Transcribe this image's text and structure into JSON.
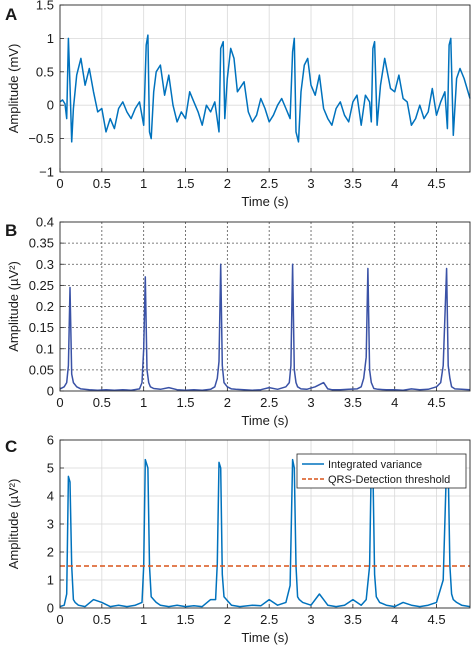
{
  "chart_data": [
    {
      "panel": "A",
      "type": "line",
      "xlabel": "Time (s)",
      "ylabel": "Amplitude (mV)",
      "xlim": [
        0,
        4.9
      ],
      "ylim": [
        -1,
        1.5
      ],
      "xticks": [
        "0",
        "0.5",
        "1",
        "1.5",
        "2",
        "2.5",
        "3",
        "3.5",
        "4",
        "4.5"
      ],
      "yticks": [
        "−1",
        "−0.5",
        "0",
        "0.5",
        "1",
        "1.5"
      ],
      "grid": "on",
      "color": "#0072BD",
      "x": [
        0.0,
        0.03,
        0.06,
        0.08,
        0.1,
        0.12,
        0.14,
        0.16,
        0.2,
        0.25,
        0.3,
        0.35,
        0.4,
        0.45,
        0.5,
        0.55,
        0.6,
        0.65,
        0.7,
        0.75,
        0.8,
        0.85,
        0.9,
        0.95,
        1.0,
        1.03,
        1.05,
        1.07,
        1.09,
        1.12,
        1.15,
        1.2,
        1.25,
        1.3,
        1.35,
        1.4,
        1.45,
        1.5,
        1.55,
        1.6,
        1.65,
        1.7,
        1.75,
        1.8,
        1.85,
        1.9,
        1.92,
        1.95,
        1.97,
        2.0,
        2.04,
        2.08,
        2.12,
        2.2,
        2.25,
        2.3,
        2.35,
        2.4,
        2.45,
        2.5,
        2.55,
        2.6,
        2.65,
        2.7,
        2.75,
        2.78,
        2.8,
        2.82,
        2.85,
        2.88,
        2.92,
        2.96,
        3.0,
        3.05,
        3.1,
        3.15,
        3.2,
        3.25,
        3.3,
        3.35,
        3.4,
        3.45,
        3.5,
        3.55,
        3.6,
        3.65,
        3.7,
        3.72,
        3.74,
        3.76,
        3.79,
        3.83,
        3.88,
        3.95,
        4.0,
        4.05,
        4.1,
        4.15,
        4.2,
        4.25,
        4.3,
        4.35,
        4.4,
        4.45,
        4.5,
        4.55,
        4.6,
        4.63,
        4.65,
        4.67,
        4.7,
        4.74,
        4.78,
        4.83,
        4.9
      ],
      "y": [
        0.05,
        0.08,
        0.02,
        -0.2,
        1.0,
        0.3,
        -0.55,
        -0.05,
        0.45,
        0.7,
        0.3,
        0.55,
        0.2,
        -0.1,
        -0.05,
        -0.4,
        -0.2,
        -0.35,
        -0.05,
        0.05,
        -0.1,
        -0.2,
        -0.05,
        0.05,
        -0.3,
        0.9,
        1.05,
        -0.4,
        -0.5,
        0.2,
        0.5,
        0.6,
        0.15,
        0.45,
        0.0,
        -0.25,
        -0.1,
        -0.2,
        0.2,
        0.05,
        -0.1,
        -0.3,
        0.0,
        -0.1,
        0.05,
        -0.4,
        0.85,
        0.95,
        -0.2,
        0.4,
        0.85,
        0.7,
        0.2,
        0.35,
        -0.1,
        -0.25,
        -0.15,
        0.1,
        -0.05,
        -0.25,
        -0.15,
        0.0,
        0.1,
        -0.05,
        -0.2,
        0.8,
        1.0,
        -0.4,
        -0.55,
        0.2,
        0.6,
        0.7,
        0.3,
        0.15,
        0.45,
        -0.05,
        -0.2,
        -0.3,
        -0.05,
        0.05,
        -0.15,
        -0.25,
        0.05,
        0.15,
        -0.3,
        0.15,
        0.05,
        -0.25,
        0.85,
        0.95,
        -0.3,
        0.3,
        0.7,
        0.25,
        0.2,
        0.45,
        0.1,
        0.05,
        -0.3,
        -0.2,
        0.0,
        -0.2,
        -0.1,
        0.25,
        -0.15,
        0.05,
        0.2,
        -0.35,
        0.9,
        1.0,
        -0.45,
        0.4,
        0.55,
        0.4,
        0.1
      ]
    },
    {
      "panel": "B",
      "type": "line",
      "xlabel": "Time (s)",
      "ylabel": "Amplitude (µV²)",
      "xlim": [
        0,
        4.9
      ],
      "ylim": [
        0,
        0.4
      ],
      "xticks": [
        "0",
        "0.5",
        "1",
        "1.5",
        "2",
        "2.5",
        "3",
        "3.5",
        "4",
        "4.5"
      ],
      "yticks": [
        "0",
        "0.05",
        "0.1",
        "0.15",
        "0.2",
        "0.25",
        "0.3",
        "0.35",
        "0.4"
      ],
      "grid": "dotted",
      "color": "#3A52A6",
      "x": [
        0.0,
        0.05,
        0.08,
        0.1,
        0.12,
        0.14,
        0.16,
        0.2,
        0.25,
        0.35,
        0.45,
        0.55,
        0.65,
        0.75,
        0.85,
        0.95,
        0.98,
        1.0,
        1.02,
        1.04,
        1.06,
        1.08,
        1.12,
        1.2,
        1.3,
        1.4,
        1.5,
        1.6,
        1.7,
        1.8,
        1.85,
        1.88,
        1.9,
        1.92,
        1.94,
        1.96,
        2.0,
        2.05,
        2.1,
        2.2,
        2.3,
        2.4,
        2.5,
        2.6,
        2.7,
        2.74,
        2.76,
        2.78,
        2.8,
        2.82,
        2.84,
        2.88,
        2.95,
        3.05,
        3.15,
        3.2,
        3.25,
        3.35,
        3.45,
        3.55,
        3.6,
        3.63,
        3.66,
        3.68,
        3.7,
        3.72,
        3.75,
        3.8,
        3.9,
        4.0,
        4.1,
        4.2,
        4.3,
        4.4,
        4.5,
        4.55,
        4.58,
        4.62,
        4.64,
        4.66,
        4.68,
        4.72,
        4.8,
        4.9
      ],
      "y": [
        0.005,
        0.01,
        0.02,
        0.06,
        0.245,
        0.04,
        0.02,
        0.01,
        0.005,
        0.003,
        0.002,
        0.003,
        0.002,
        0.003,
        0.002,
        0.005,
        0.02,
        0.1,
        0.27,
        0.05,
        0.02,
        0.01,
        0.006,
        0.004,
        0.008,
        0.003,
        0.002,
        0.003,
        0.002,
        0.004,
        0.01,
        0.03,
        0.07,
        0.3,
        0.06,
        0.02,
        0.01,
        0.005,
        0.004,
        0.003,
        0.002,
        0.003,
        0.008,
        0.004,
        0.01,
        0.02,
        0.06,
        0.3,
        0.05,
        0.02,
        0.01,
        0.005,
        0.004,
        0.01,
        0.02,
        0.005,
        0.003,
        0.003,
        0.004,
        0.005,
        0.01,
        0.03,
        0.08,
        0.29,
        0.05,
        0.02,
        0.006,
        0.004,
        0.003,
        0.003,
        0.002,
        0.005,
        0.003,
        0.004,
        0.01,
        0.02,
        0.06,
        0.29,
        0.06,
        0.03,
        0.01,
        0.005,
        0.004,
        0.003
      ]
    },
    {
      "panel": "C",
      "type": "line",
      "xlabel": "Time (s)",
      "ylabel": "Amplitude (µV²)",
      "xlim": [
        0,
        4.9
      ],
      "ylim": [
        0,
        6
      ],
      "xticks": [
        "0",
        "0.5",
        "1",
        "1.5",
        "2",
        "2.5",
        "3",
        "3.5",
        "4",
        "4.5"
      ],
      "yticks": [
        "0",
        "1",
        "2",
        "3",
        "4",
        "5",
        "6"
      ],
      "grid": "on",
      "legend_placement": "top-right",
      "series": [
        {
          "name": "Integrated variance",
          "color": "#0072BD",
          "style": "solid",
          "x": [
            0.0,
            0.05,
            0.08,
            0.1,
            0.12,
            0.14,
            0.16,
            0.18,
            0.22,
            0.3,
            0.4,
            0.5,
            0.6,
            0.7,
            0.8,
            0.9,
            0.98,
            1.0,
            1.02,
            1.05,
            1.07,
            1.09,
            1.12,
            1.15,
            1.2,
            1.3,
            1.4,
            1.5,
            1.6,
            1.7,
            1.8,
            1.86,
            1.88,
            1.9,
            1.92,
            1.94,
            1.96,
            1.99,
            2.05,
            2.15,
            2.3,
            2.4,
            2.5,
            2.6,
            2.7,
            2.75,
            2.78,
            2.8,
            2.82,
            2.84,
            2.86,
            2.9,
            3.0,
            3.1,
            3.15,
            3.2,
            3.3,
            3.4,
            3.5,
            3.6,
            3.66,
            3.7,
            3.72,
            3.74,
            3.76,
            3.78,
            3.82,
            3.9,
            4.0,
            4.1,
            4.2,
            4.3,
            4.4,
            4.5,
            4.58,
            4.62,
            4.64,
            4.66,
            4.68,
            4.7,
            4.74,
            4.8,
            4.9
          ],
          "y": [
            0.05,
            0.1,
            0.5,
            4.7,
            4.5,
            1.5,
            0.3,
            0.2,
            0.1,
            0.05,
            0.3,
            0.2,
            0.05,
            0.1,
            0.05,
            0.1,
            0.2,
            1.5,
            5.3,
            5.0,
            1.5,
            0.4,
            0.3,
            0.2,
            0.1,
            0.05,
            0.1,
            0.05,
            0.08,
            0.05,
            0.3,
            0.3,
            1.6,
            5.2,
            5.0,
            1.2,
            0.4,
            0.3,
            0.1,
            0.05,
            0.1,
            0.08,
            0.3,
            0.1,
            0.2,
            0.8,
            5.3,
            5.0,
            1.5,
            0.4,
            0.3,
            0.2,
            0.1,
            0.5,
            0.3,
            0.1,
            0.05,
            0.1,
            0.3,
            0.1,
            0.3,
            1.5,
            5.2,
            5.0,
            1.2,
            0.4,
            0.2,
            0.1,
            0.05,
            0.2,
            0.1,
            0.05,
            0.1,
            0.2,
            1.0,
            5.2,
            5.0,
            1.5,
            0.5,
            0.3,
            0.2,
            0.1,
            0.05
          ]
        },
        {
          "name": "QRS-Detection threshold",
          "color": "#D95319",
          "style": "dashed",
          "x": [
            0,
            4.9
          ],
          "y": [
            1.5,
            1.5
          ]
        }
      ]
    }
  ]
}
